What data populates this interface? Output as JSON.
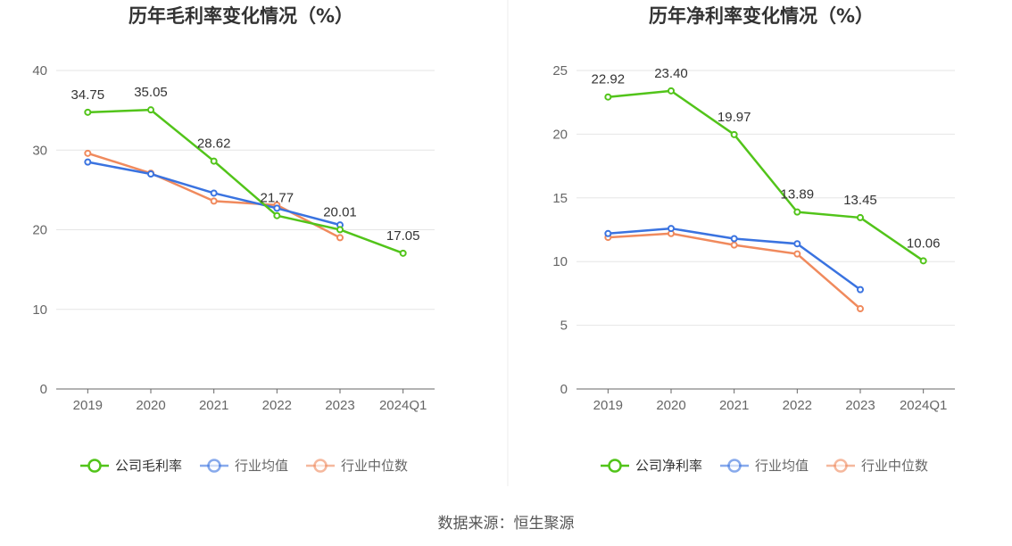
{
  "source_text": "数据来源：恒生聚源",
  "chart_data": [
    {
      "type": "line",
      "title": "历年毛利率变化情况（%）",
      "categories": [
        "2019",
        "2020",
        "2021",
        "2022",
        "2023",
        "2024Q1"
      ],
      "ylim": [
        0,
        40
      ],
      "yticks": [
        0,
        10,
        20,
        30,
        40
      ],
      "grid": true,
      "legend_position": "bottom",
      "series": [
        {
          "name": "公司毛利率",
          "color": "#52c41a",
          "values": [
            34.75,
            35.05,
            28.62,
            21.77,
            20.01,
            17.05
          ],
          "show_labels": true,
          "labels": [
            "34.75",
            "35.05",
            "28.62",
            "21.77",
            "20.01",
            "17.05"
          ]
        },
        {
          "name": "行业均值",
          "color": "#3a73e0",
          "values": [
            28.5,
            27.0,
            24.6,
            22.7,
            20.6,
            null
          ],
          "show_labels": false
        },
        {
          "name": "行业中位数",
          "color": "#f08a5d",
          "values": [
            29.6,
            27.1,
            23.6,
            23.1,
            19.0,
            null
          ],
          "show_labels": false
        }
      ]
    },
    {
      "type": "line",
      "title": "历年净利率变化情况（%）",
      "categories": [
        "2019",
        "2020",
        "2021",
        "2022",
        "2023",
        "2024Q1"
      ],
      "ylim": [
        0,
        25
      ],
      "yticks": [
        0,
        5,
        10,
        15,
        20,
        25
      ],
      "grid": true,
      "legend_position": "bottom",
      "series": [
        {
          "name": "公司净利率",
          "color": "#52c41a",
          "values": [
            22.92,
            23.4,
            19.97,
            13.89,
            13.45,
            10.06
          ],
          "show_labels": true,
          "labels": [
            "22.92",
            "23.40",
            "19.97",
            "13.89",
            "13.45",
            "10.06"
          ]
        },
        {
          "name": "行业均值",
          "color": "#3a73e0",
          "values": [
            12.2,
            12.6,
            11.8,
            11.4,
            7.8,
            null
          ],
          "show_labels": false
        },
        {
          "name": "行业中位数",
          "color": "#f08a5d",
          "values": [
            11.9,
            12.2,
            11.3,
            10.6,
            6.3,
            null
          ],
          "show_labels": false
        }
      ]
    }
  ]
}
